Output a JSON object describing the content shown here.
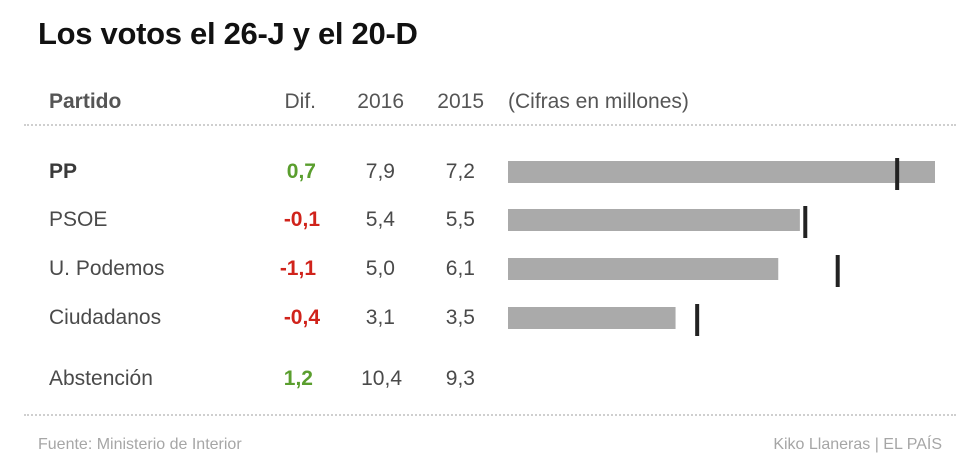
{
  "title": "Los votos el 26-J y el 20-D",
  "headers": {
    "party": "Partido",
    "diff": "Dif.",
    "y2016": "2016",
    "y2015": "2015",
    "units": "(Cifras en millones)"
  },
  "rows": [
    {
      "party": "PP",
      "diff": "0,7",
      "v2016": "7,9",
      "v2015": "7,2"
    },
    {
      "party": "PSOE",
      "diff": "-0,1",
      "v2016": "5,4",
      "v2015": "5,5"
    },
    {
      "party": "U. Podemos",
      "diff": "-1,1",
      "v2016": "5,0",
      "v2015": "6,1"
    },
    {
      "party": "Ciudadanos",
      "diff": "-0,4",
      "v2016": "3,1",
      "v2015": "3,5"
    },
    {
      "party": "Abstención",
      "diff": "1,2",
      "v2016": "10,4",
      "v2015": "9,3"
    }
  ],
  "colors": {
    "positive": "#5a9e2e",
    "negative": "#d0231b",
    "bar": "#aaaaaa",
    "marker": "#222222"
  },
  "footer": {
    "source": "Fuente: Ministerio de Interior",
    "credit": "Kiko Llaneras  |  EL PAÍS"
  },
  "chart_data": {
    "type": "bar",
    "orientation": "horizontal",
    "categories": [
      "PP",
      "PSOE",
      "U. Podemos",
      "Ciudadanos"
    ],
    "series": [
      {
        "name": "2016",
        "values": [
          7.9,
          5.4,
          5.0,
          3.1
        ]
      },
      {
        "name": "2015",
        "values": [
          7.2,
          5.5,
          6.1,
          3.5
        ]
      }
    ],
    "xlim": [
      0,
      7.9
    ],
    "grid": false
  }
}
